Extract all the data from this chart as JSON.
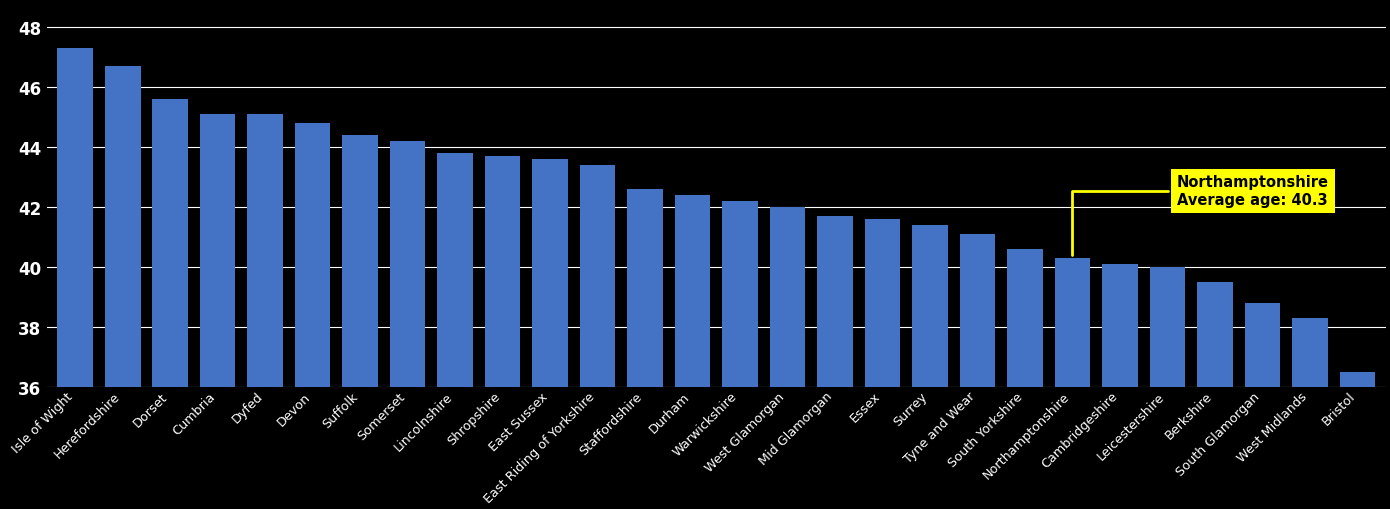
{
  "categories": [
    "Isle of Wight",
    "Herefordshire",
    "Dorset",
    "Cumbria",
    "Dyfed",
    "Devon",
    "Suffolk",
    "Somerset",
    "Lincolnshire",
    "Shropshire",
    "East Sussex",
    "East Riding of Yorkshire",
    "Staffordshire",
    "Durham",
    "Warwickshire",
    "West Glamorgan",
    "Mid Glamorgan",
    "Essex",
    "Surrey",
    "Tyne and Wear",
    "South Yorkshire",
    "Northamptonshire",
    "Cambridgeshire",
    "Leicestershire",
    "Berkshire",
    "South Glamorgan",
    "West Midlands",
    "Bristol"
  ],
  "values": [
    47.3,
    46.7,
    45.6,
    45.1,
    45.1,
    44.8,
    44.4,
    44.2,
    43.8,
    43.7,
    43.6,
    43.4,
    42.6,
    42.4,
    42.2,
    42.0,
    41.7,
    41.6,
    41.4,
    41.1,
    40.6,
    40.3,
    40.1,
    40.0,
    39.5,
    38.8,
    38.3,
    36.5
  ],
  "highlight_index": 21,
  "highlight_label": "Northamptonshire\nAverage age: 40.3",
  "bar_color": "#4472C4",
  "background_color": "#000000",
  "text_color": "#FFFFFF",
  "grid_color": "#FFFFFF",
  "annotation_bg": "#FFFF00",
  "annotation_text_color": "#000000",
  "ymin": 36,
  "ylim_min": 36,
  "ylim_max": 48.8,
  "yticks": [
    36,
    38,
    40,
    42,
    44,
    46,
    48
  ]
}
